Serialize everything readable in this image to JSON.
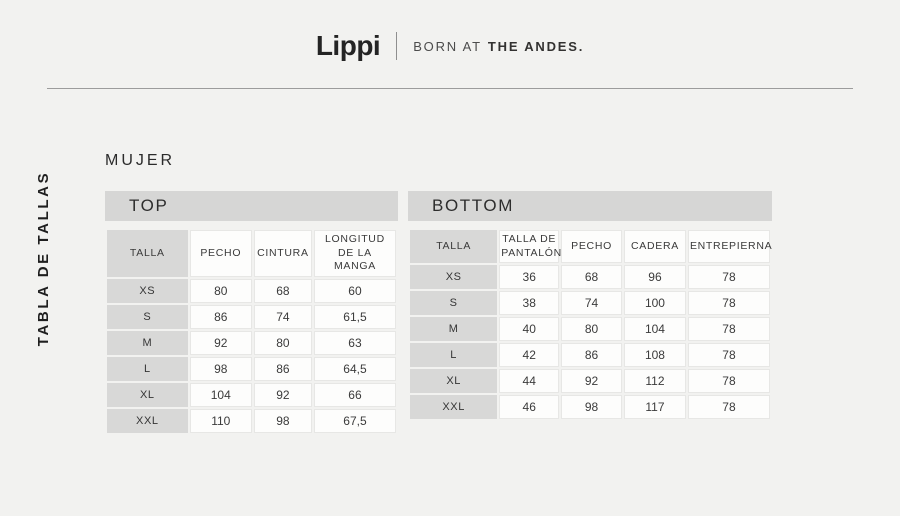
{
  "brand": {
    "logo_text": "Lippi",
    "tagline_regular": "BORN AT",
    "tagline_bold": "THE ANDES."
  },
  "vertical_label": "TABLA DE TALLAS",
  "section_title": "MUJER",
  "tables": [
    {
      "title": "TOP",
      "columns": [
        "TALLA",
        "PECHO",
        "CINTURA",
        "LONGITUD\nDE LA MANGA"
      ],
      "rows": [
        [
          "XS",
          "80",
          "68",
          "60"
        ],
        [
          "S",
          "86",
          "74",
          "61,5"
        ],
        [
          "M",
          "92",
          "80",
          "63"
        ],
        [
          "L",
          "98",
          "86",
          "64,5"
        ],
        [
          "XL",
          "104",
          "92",
          "66"
        ],
        [
          "XXL",
          "110",
          "98",
          "67,5"
        ]
      ]
    },
    {
      "title": "BOTTOM",
      "columns": [
        "TALLA",
        "TALLA DE\nPANTALÓN",
        "PECHO",
        "CADERA",
        "ENTREPIERNA"
      ],
      "rows": [
        [
          "XS",
          "36",
          "68",
          "96",
          "78"
        ],
        [
          "S",
          "38",
          "74",
          "100",
          "78"
        ],
        [
          "M",
          "40",
          "80",
          "104",
          "78"
        ],
        [
          "L",
          "42",
          "86",
          "108",
          "78"
        ],
        [
          "XL",
          "44",
          "92",
          "112",
          "78"
        ],
        [
          "XXL",
          "46",
          "98",
          "117",
          "78"
        ]
      ]
    }
  ],
  "colors": {
    "page_background": "#f2f2f0",
    "header_bar_gray": "#d6d6d5",
    "cell_background": "#fdfdfc",
    "cell_border": "#e7e7e5",
    "rule_gray": "#9c9c9c",
    "text_dark": "#2f2f2f"
  }
}
